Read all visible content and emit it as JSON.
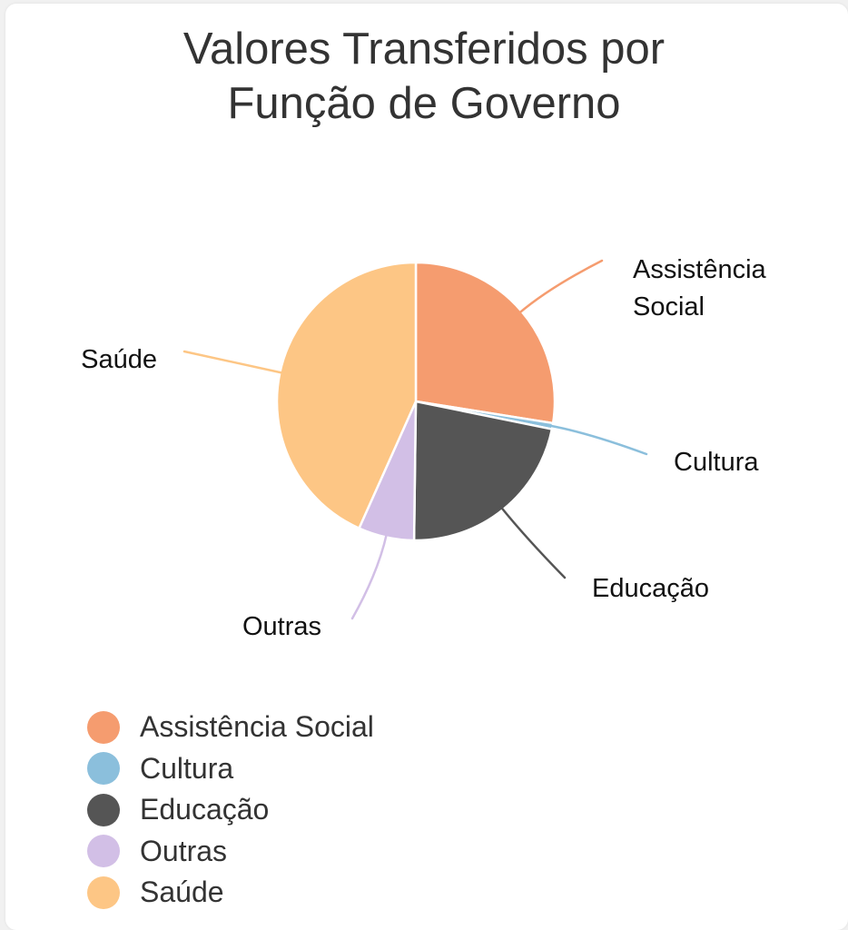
{
  "title_lines": [
    "Valores Transferidos por",
    "Função de Governo"
  ],
  "chart_data": {
    "type": "pie",
    "title": "Valores Transferidos por Função de Governo",
    "unit": "",
    "slices": [
      {
        "label": "Assistência Social",
        "callout": [
          "Assistência",
          "Social"
        ],
        "value": 27.5,
        "color": "#f59c6f"
      },
      {
        "label": "Cultura",
        "callout": [
          "Cultura"
        ],
        "value": 0.7,
        "color": "#8bbfdc"
      },
      {
        "label": "Educação",
        "callout": [
          "Educação"
        ],
        "value": 22.0,
        "color": "#555555"
      },
      {
        "label": "Outras",
        "callout": [
          "Outras"
        ],
        "value": 6.5,
        "color": "#d2bfe6"
      },
      {
        "label": "Saúde",
        "callout": [
          "Saúde"
        ],
        "value": 43.3,
        "color": "#fdc685"
      }
    ],
    "legend_position": "bottom-left"
  }
}
